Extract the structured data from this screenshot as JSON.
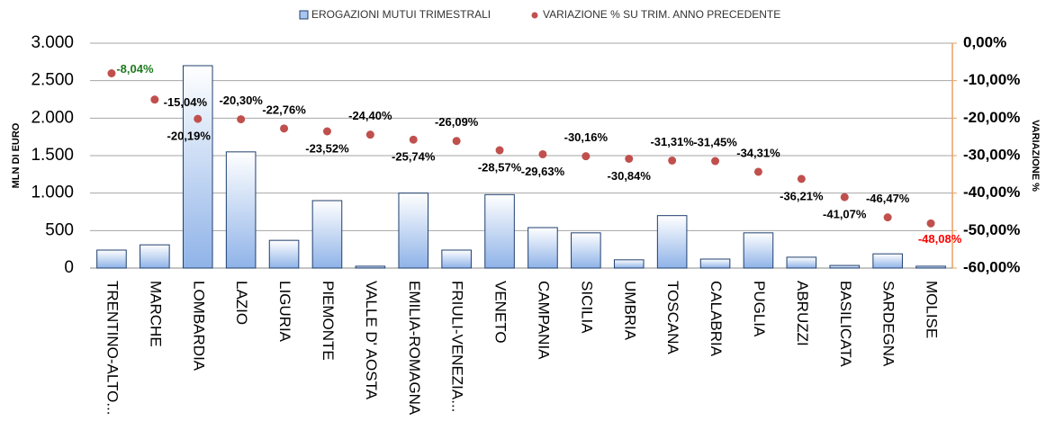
{
  "chart_data": {
    "type": "bar",
    "ylabel": "MLN DI EURO",
    "y2label": "VARIAZIONE %",
    "categories": [
      "TRENTINO-ALTO...",
      "MARCHE",
      "LOMBARDIA",
      "LAZIO",
      "LIGURIA",
      "PIEMONTE",
      "VALLE D' AOSTA",
      "EMILIA-ROMAGNA",
      "FRIULI-VENEZIA...",
      "VENETO",
      "CAMPANIA",
      "SICILIA",
      "UMBRIA",
      "TOSCANA",
      "CALABRIA",
      "PUGLIA",
      "ABRUZZI",
      "BASILICATA",
      "SARDEGNA",
      "MOLISE"
    ],
    "series": [
      {
        "name": "EROGAZIONI MUTUI TRIMESTRALI",
        "type": "bar",
        "color": "#a9c6ef",
        "values": [
          240,
          310,
          2700,
          1550,
          370,
          900,
          25,
          1000,
          240,
          980,
          540,
          470,
          110,
          700,
          120,
          470,
          145,
          35,
          190,
          25
        ]
      },
      {
        "name": "VARIAZIONE % SU TRIM. ANNO PRECEDENTE",
        "type": "scatter",
        "axis": "y2",
        "color": "#c0504d",
        "values": [
          -8.04,
          -15.04,
          -20.19,
          -20.3,
          -22.76,
          -23.52,
          -24.4,
          -25.74,
          -26.09,
          -28.57,
          -29.63,
          -30.16,
          -30.84,
          -31.31,
          -31.45,
          -34.31,
          -36.21,
          -41.07,
          -46.47,
          -48.08
        ],
        "value_labels": [
          "-8,04%",
          "-15,04%",
          "-20,19%",
          "-20,30%",
          "-22,76%",
          "-23,52%",
          "-24,40%",
          "-25,74%",
          "-26,09%",
          "-28,57%",
          "-29,63%",
          "-30,16%",
          "-30,84%",
          "-31,31%",
          "-31,45%",
          "-34,31%",
          "-36,21%",
          "-41,07%",
          "-46,47%",
          "-48,08%"
        ],
        "label_colors": [
          "#1e7a1e",
          "#000000",
          "#000000",
          "#000000",
          "#000000",
          "#000000",
          "#000000",
          "#000000",
          "#000000",
          "#000000",
          "#000000",
          "#000000",
          "#000000",
          "#000000",
          "#000000",
          "#000000",
          "#000000",
          "#000000",
          "#000000",
          "#ff0000"
        ]
      }
    ],
    "ylim": [
      0,
      3000
    ],
    "yticks": [
      0,
      {
        "value": 500,
        "label": "500"
      },
      {
        "value": 1000,
        "label": "1.000"
      },
      {
        "value": 1500,
        "label": "1.500"
      },
      {
        "value": 2000,
        "label": "2.000"
      },
      {
        "value": 2500,
        "label": "2.500"
      },
      {
        "value": 3000,
        "label": "3.000"
      }
    ],
    "y2lim": [
      -60,
      0
    ],
    "y2ticks": [
      {
        "value": 0,
        "label": "0,00%"
      },
      {
        "value": -10,
        "label": "-10,00%"
      },
      {
        "value": -20,
        "label": "-20,00%"
      },
      {
        "value": -30,
        "label": "-30,00%"
      },
      {
        "value": -40,
        "label": "-40,00%"
      },
      {
        "value": -50,
        "label": "-50,00%"
      },
      {
        "value": -60,
        "label": "-60,00%"
      }
    ],
    "grid": true,
    "legend": "top"
  }
}
